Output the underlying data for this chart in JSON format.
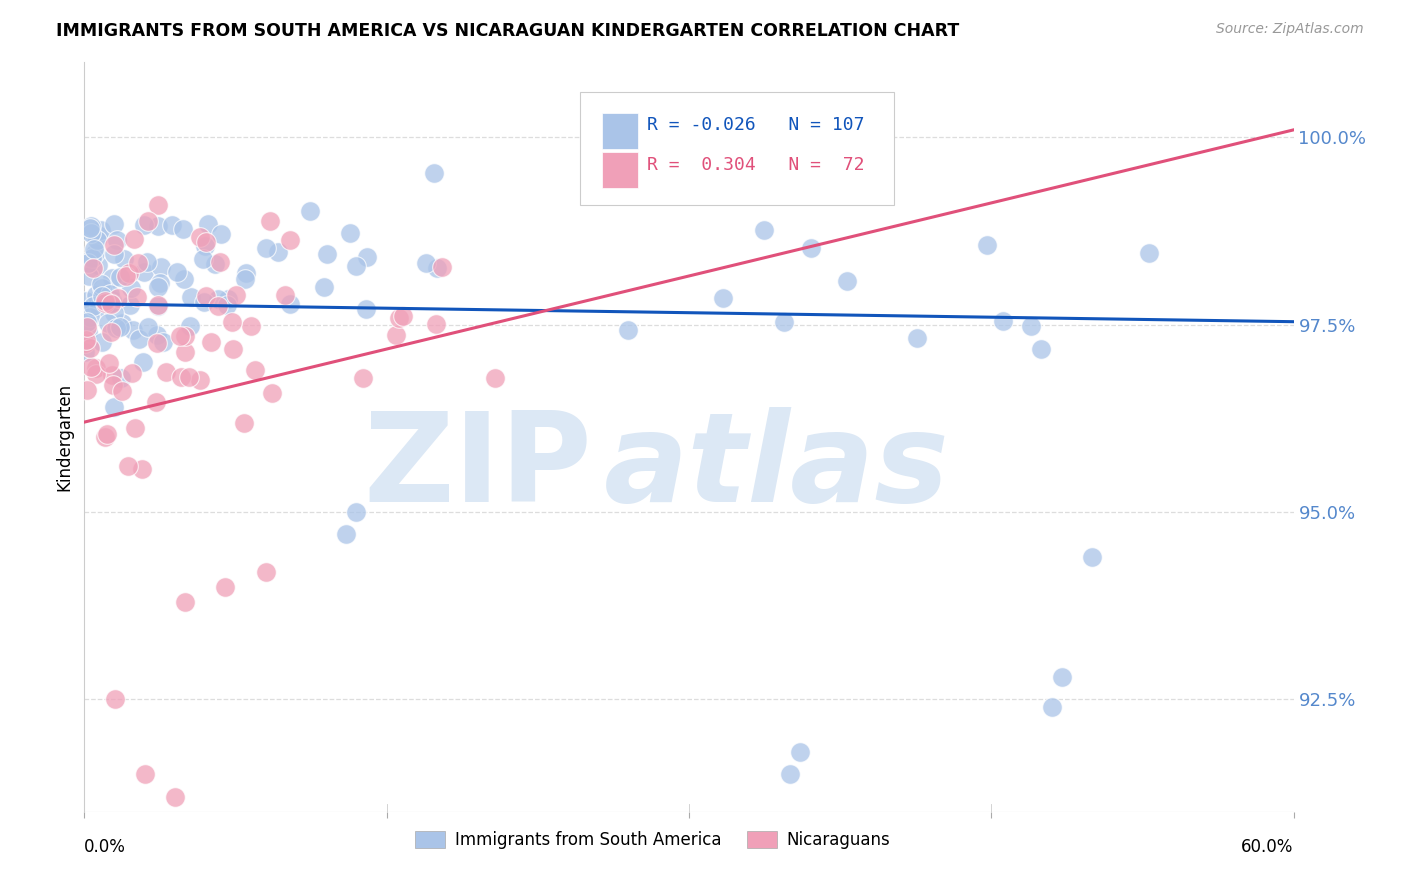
{
  "title": "IMMIGRANTS FROM SOUTH AMERICA VS NICARAGUAN KINDERGARTEN CORRELATION CHART",
  "source": "Source: ZipAtlas.com",
  "ylabel": "Kindergarten",
  "ytick_values": [
    92.5,
    95.0,
    97.5,
    100.0
  ],
  "ymin": 91.0,
  "ymax": 101.0,
  "xmin": 0.0,
  "xmax": 60.0,
  "legend_blue_r": "-0.026",
  "legend_blue_n": "107",
  "legend_pink_r": "0.304",
  "legend_pink_n": "72",
  "legend_label_blue": "Immigrants from South America",
  "legend_label_pink": "Nicaraguans",
  "blue_color": "#aac4e8",
  "pink_color": "#f0a0b8",
  "blue_line_color": "#1155bb",
  "pink_line_color": "#e0507a",
  "watermark_zip_color": "#dce8f5",
  "watermark_atlas_color": "#dce8f5",
  "background_color": "#ffffff",
  "grid_color": "#dddddd",
  "ytick_color": "#5588cc",
  "xtick_label_color": "#000000"
}
